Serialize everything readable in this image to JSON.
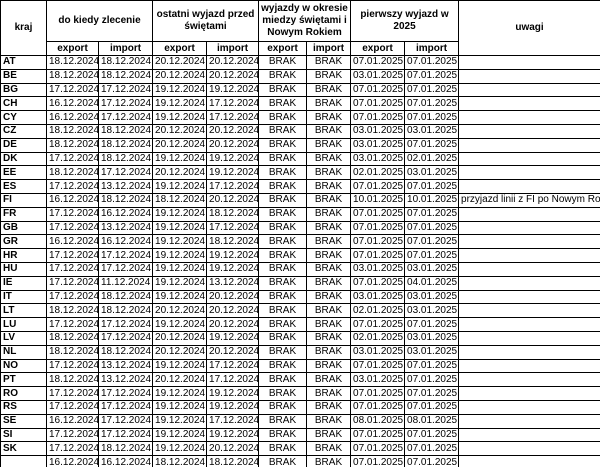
{
  "header": {
    "kraj": "kraj",
    "groups": [
      {
        "title": "do kiedy zlecenie",
        "sub": [
          "export",
          "import"
        ]
      },
      {
        "title": "ostatni wyjazd przed świętami",
        "sub": [
          "export",
          "import"
        ]
      },
      {
        "title": "wyjazdy w okresie miedzy świętami i Nowym Rokiem",
        "sub": [
          "export",
          "import"
        ]
      },
      {
        "title": "pierwszy wyjazd w 2025",
        "sub": [
          "export",
          "import"
        ]
      }
    ],
    "uwagi": "uwagi"
  },
  "table": {
    "rows": [
      [
        "AT",
        "18.12.2024",
        "18.12.2024",
        "20.12.2024",
        "20.12.2024",
        "BRAK",
        "BRAK",
        "07.01.2025",
        "07.01.2025",
        null
      ],
      [
        "BE",
        "18.12.2024",
        "18.12.2024",
        "20.12.2024",
        "20.12.2024",
        "BRAK",
        "BRAK",
        "03.01.2025",
        "07.01.2025",
        null
      ],
      [
        "BG",
        "17.12.2024",
        "17.12.2024",
        "19.12.2024",
        "19.12.2024",
        "BRAK",
        "BRAK",
        "07.01.2025",
        "07.01.2025",
        null
      ],
      [
        "CH",
        "16.12.2024",
        "17.12.2024",
        "19.12.2024",
        "17.12.2024",
        "BRAK",
        "BRAK",
        "07.01.2025",
        "07.01.2025",
        null
      ],
      [
        "CY",
        "16.12.2024",
        "17.12.2024",
        "19.12.2024",
        "17.12.2024",
        "BRAK",
        "BRAK",
        "07.01.2025",
        "07.01.2025",
        null
      ],
      [
        "CZ",
        "18.12.2024",
        "18.12.2024",
        "20.12.2024",
        "20.12.2024",
        "BRAK",
        "BRAK",
        "03.01.2025",
        "03.01.2025",
        null
      ],
      [
        "DE",
        "18.12.2024",
        "18.12.2024",
        "20.12.2024",
        "20.12.2024",
        "BRAK",
        "BRAK",
        "03.01.2025",
        "07.01.2025",
        null
      ],
      [
        "DK",
        "17.12.2024",
        "18.12.2024",
        "19.12.2024",
        "19.12.2024",
        "BRAK",
        "BRAK",
        "03.01.2025",
        "02.01.2025",
        null
      ],
      [
        "EE",
        "18.12.2024",
        "17.12.2024",
        "20.12.2024",
        "19.12.2024",
        "BRAK",
        "BRAK",
        "02.01.2025",
        "03.01.2025",
        null
      ],
      [
        "ES",
        "17.12.2024",
        "13.12.2024",
        "19.12.2024",
        "17.12.2024",
        "BRAK",
        "BRAK",
        "07.01.2025",
        "07.01.2025",
        null
      ],
      [
        "FI",
        "16.12.2024",
        "18.12.2024",
        "18.12.2024",
        "20.12.2024",
        "BRAK",
        "BRAK",
        "10.01.2025",
        "10.01.2025",
        "przyjazd linii z FI po Nowym Rok"
      ],
      [
        "FR",
        "17.12.2024",
        "16.12.2024",
        "19.12.2024",
        "18.12.2024",
        "BRAK",
        "BRAK",
        "07.01.2025",
        "07.01.2025",
        null
      ],
      [
        "GB",
        "17.12.2024",
        "13.12.2024",
        "19.12.2024",
        "17.12.2024",
        "BRAK",
        "BRAK",
        "07.01.2025",
        "07.01.2025",
        null
      ],
      [
        "GR",
        "16.12.2024",
        "16.12.2024",
        "19.12.2024",
        "18.12.2024",
        "BRAK",
        "BRAK",
        "07.01.2025",
        "07.01.2025",
        null
      ],
      [
        "HR",
        "17.12.2024",
        "17.12.2024",
        "19.12.2024",
        "19.12.2024",
        "BRAK",
        "BRAK",
        "07.01.2025",
        "07.01.2025",
        null
      ],
      [
        "HU",
        "17.12.2024",
        "17.12.2024",
        "19.12.2024",
        "19.12.2024",
        "BRAK",
        "BRAK",
        "03.01.2025",
        "03.01.2025",
        null
      ],
      [
        "IE",
        "17.12.2024",
        "11.12.2024",
        "19.12.2024",
        "13.12.2024",
        "BRAK",
        "BRAK",
        "07.01.2025",
        "04.01.2025",
        null
      ],
      [
        "IT",
        "17.12.2024",
        "18.12.2024",
        "19.12.2024",
        "20.12.2024",
        "BRAK",
        "BRAK",
        "03.01.2025",
        "03.01.2025",
        null
      ],
      [
        "LT",
        "18.12.2024",
        "18.12.2024",
        "20.12.2024",
        "20.12.2024",
        "BRAK",
        "BRAK",
        "02.01.2025",
        "03.01.2025",
        null
      ],
      [
        "LU",
        "17.12.2024",
        "17.12.2024",
        "19.12.2024",
        "20.12.2024",
        "BRAK",
        "BRAK",
        "07.01.2025",
        "07.01.2025",
        null
      ],
      [
        "LV",
        "18.12.2024",
        "17.12.2024",
        "20.12.2024",
        "19.12.2024",
        "BRAK",
        "BRAK",
        "02.01.2025",
        "03.01.2025",
        null
      ],
      [
        "NL",
        "18.12.2024",
        "18.12.2024",
        "20.12.2024",
        "20.12.2024",
        "BRAK",
        "BRAK",
        "03.01.2025",
        "03.01.2025",
        null
      ],
      [
        "NO",
        "17.12.2024",
        "13.12.2024",
        "19.12.2024",
        "17.12.2024",
        "BRAK",
        "BRAK",
        "07.01.2025",
        "07.01.2025",
        null
      ],
      [
        "PT",
        "18.12.2024",
        "13.12.2024",
        "20.12.2024",
        "17.12.2024",
        "BRAK",
        "BRAK",
        "03.01.2025",
        "07.01.2025",
        null
      ],
      [
        "RO",
        "17.12.2024",
        "17.12.2024",
        "19.12.2024",
        "19.12.2024",
        "BRAK",
        "BRAK",
        "07.01.2025",
        "07.01.2025",
        null
      ],
      [
        "RS",
        "17.12.2024",
        "17.12.2024",
        "19.12.2024",
        "19.12.2024",
        "BRAK",
        "BRAK",
        "07.01.2025",
        "07.01.2025",
        null
      ],
      [
        "SE",
        "16.12.2024",
        "17.12.2024",
        "19.12.2024",
        "17.12.2024",
        "BRAK",
        "BRAK",
        "08.01.2025",
        "08.01.2025",
        null
      ],
      [
        "SI",
        "17.12.2024",
        "17.12.2024",
        "19.12.2024",
        "19.12.2024",
        "BRAK",
        "BRAK",
        "07.01.2025",
        "07.01.2025",
        null
      ],
      [
        "SK",
        "17.12.2024",
        "18.12.2024",
        "19.12.2024",
        "20.12.2024",
        "BRAK",
        "BRAK",
        "07.01.2025",
        "07.01.2025",
        null
      ],
      [
        null,
        "16.12.2024",
        "16.12.2024",
        "18.12.2024",
        "18.12.2024",
        "BRAK",
        "BRAK",
        "07.01.2025",
        "07.01.2025",
        null
      ]
    ]
  }
}
